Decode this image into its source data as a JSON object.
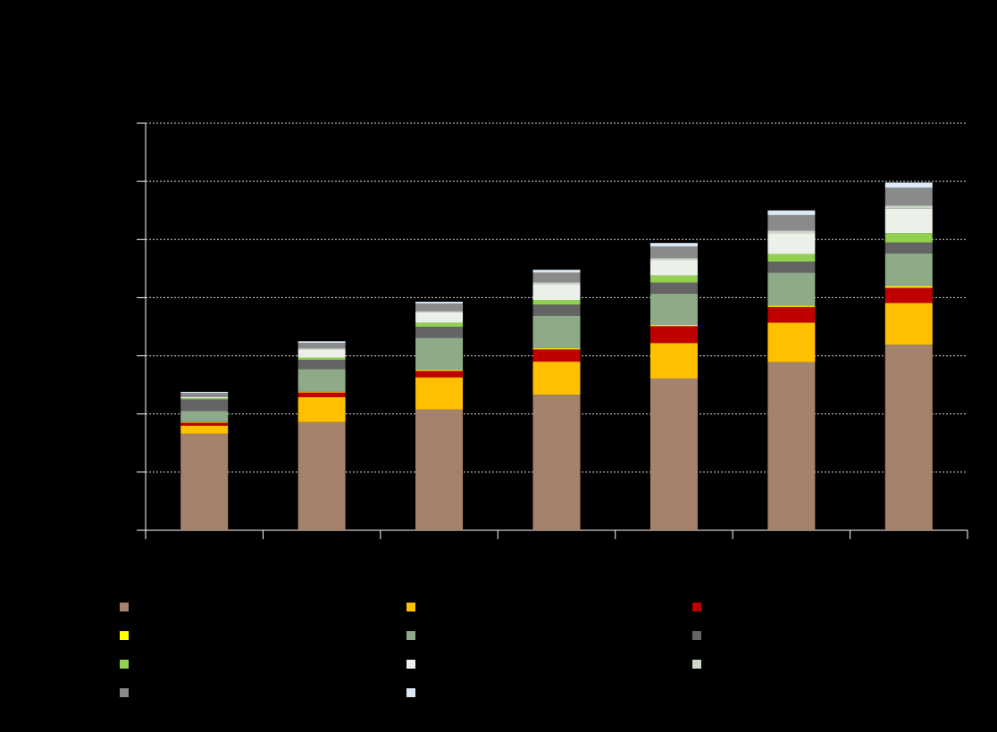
{
  "chart_data": {
    "type": "bar",
    "stacked": true,
    "title": "",
    "xlabel": "",
    "ylabel": "",
    "categories": [
      "",
      "",
      "",
      "",
      "",
      "",
      ""
    ],
    "ylim": [
      0,
      7
    ],
    "grid": true,
    "legend_position": "bottom",
    "series": [
      {
        "color": "#a5826c",
        "values": [
          1.66,
          1.86,
          2.08,
          2.33,
          2.61,
          2.89,
          3.19
        ]
      },
      {
        "color": "#ffc000",
        "values": [
          0.14,
          0.43,
          0.55,
          0.57,
          0.61,
          0.68,
          0.72
        ]
      },
      {
        "color": "#c00000",
        "values": [
          0.05,
          0.08,
          0.11,
          0.21,
          0.29,
          0.27,
          0.26
        ]
      },
      {
        "color": "#ffff00",
        "values": [
          0.01,
          0.01,
          0.02,
          0.02,
          0.02,
          0.02,
          0.03
        ]
      },
      {
        "color": "#8faa88",
        "values": [
          0.19,
          0.39,
          0.55,
          0.56,
          0.54,
          0.57,
          0.56
        ]
      },
      {
        "color": "#646464",
        "values": [
          0.2,
          0.16,
          0.19,
          0.19,
          0.19,
          0.19,
          0.19
        ]
      },
      {
        "color": "#92d050",
        "values": [
          0.02,
          0.04,
          0.07,
          0.08,
          0.12,
          0.13,
          0.16
        ]
      },
      {
        "color": "#ebf1e8",
        "values": [
          0.02,
          0.14,
          0.18,
          0.27,
          0.27,
          0.36,
          0.42
        ]
      },
      {
        "color": "#ccd6c9",
        "values": [
          0.01,
          0.02,
          0.02,
          0.03,
          0.03,
          0.04,
          0.05
        ]
      },
      {
        "color": "#8a8a8a",
        "values": [
          0.06,
          0.09,
          0.13,
          0.17,
          0.2,
          0.27,
          0.31
        ]
      },
      {
        "color": "#dce9f5",
        "values": [
          0.02,
          0.03,
          0.03,
          0.05,
          0.06,
          0.08,
          0.09
        ]
      }
    ]
  }
}
